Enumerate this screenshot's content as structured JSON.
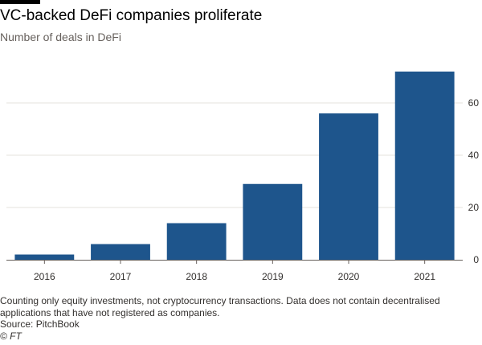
{
  "title": "VC-backed DeFi companies proliferate",
  "subtitle": "Number of deals in DeFi",
  "footer": {
    "note": "Counting only equity investments, not cryptocurrency transactions. Data does not contain decentralised applications that have not registered as companies.",
    "source": "Source: PitchBook",
    "copyright": "© FT"
  },
  "colors": {
    "bar": "#1e558c",
    "grid": "#e6e3de",
    "axis": "#66605c"
  },
  "chart_data": {
    "type": "bar",
    "title": "VC-backed DeFi companies proliferate",
    "subtitle": "Number of deals in DeFi",
    "xlabel": "",
    "ylabel": "",
    "categories": [
      "2016",
      "2017",
      "2018",
      "2019",
      "2020",
      "2021"
    ],
    "values": [
      2,
      6,
      14,
      29,
      56,
      72
    ],
    "ylim": [
      0,
      80
    ],
    "yticks": [
      0,
      20,
      40,
      60
    ],
    "y_axis_side": "right",
    "grid": true,
    "legend": "none"
  }
}
